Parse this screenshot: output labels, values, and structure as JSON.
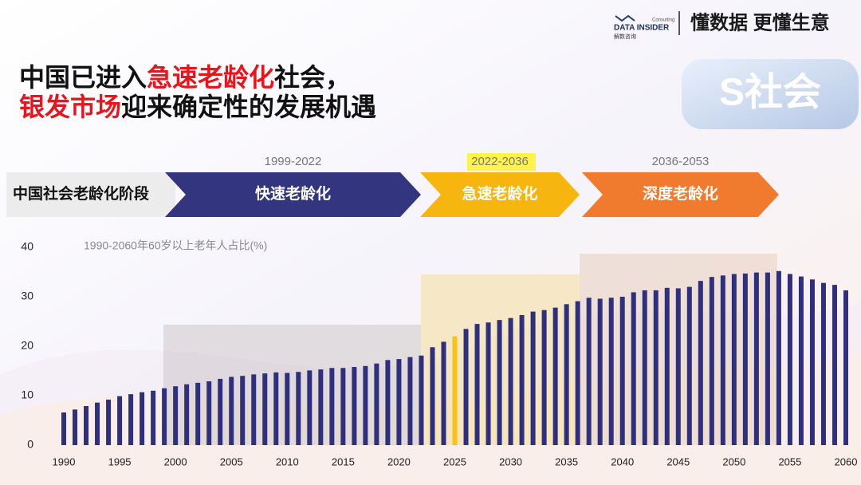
{
  "header": {
    "brand": "DATA INSIDER",
    "brand_sub": "Consulting",
    "brand_cn": "解数咨询",
    "slogan": "懂数据 更懂生意"
  },
  "title": {
    "line1": [
      {
        "text": "中国已进入",
        "red": false
      },
      {
        "text": "急速老龄化",
        "red": true
      },
      {
        "text": "社会，",
        "red": false
      }
    ],
    "line2": [
      {
        "text": "银发市场",
        "red": true
      },
      {
        "text": "迎来确定性的发展机遇",
        "red": false
      }
    ]
  },
  "badge": "S社会",
  "stage_label": "中国社会老龄化阶段",
  "stages": [
    {
      "period": "1999-2022",
      "label": "快速老龄化",
      "color": "#34357f"
    },
    {
      "period": "2022-2036",
      "label": "急速老龄化",
      "color": "#f7b50f"
    },
    {
      "period": "2036-2053",
      "label": "深度老龄化",
      "color": "#f07a2e"
    }
  ],
  "chart_data": {
    "type": "bar",
    "subtitle": "1990-2060年60岁以上老年人占比(%)",
    "x": [
      1990,
      1991,
      1992,
      1993,
      1994,
      1995,
      1996,
      1997,
      1998,
      1999,
      2000,
      2001,
      2002,
      2003,
      2004,
      2005,
      2006,
      2007,
      2008,
      2009,
      2010,
      2011,
      2012,
      2013,
      2014,
      2015,
      2016,
      2017,
      2018,
      2019,
      2020,
      2021,
      2022,
      2023,
      2024,
      2025,
      2026,
      2027,
      2028,
      2029,
      2030,
      2031,
      2032,
      2033,
      2034,
      2035,
      2036,
      2037,
      2038,
      2039,
      2040,
      2041,
      2042,
      2043,
      2044,
      2045,
      2046,
      2047,
      2048,
      2049,
      2050,
      2051,
      2052,
      2053,
      2054,
      2055,
      2056,
      2057,
      2058,
      2059,
      2060
    ],
    "values": [
      6.6,
      7.2,
      7.9,
      8.6,
      9.2,
      9.9,
      10.3,
      10.7,
      11.0,
      11.5,
      11.9,
      12.3,
      12.6,
      12.9,
      13.4,
      13.8,
      14.0,
      14.3,
      14.5,
      14.7,
      14.6,
      14.8,
      15.1,
      15.3,
      15.6,
      15.6,
      15.8,
      16.0,
      16.5,
      17.2,
      17.4,
      17.8,
      18.1,
      19.8,
      20.9,
      22.0,
      23.5,
      24.5,
      24.8,
      25.3,
      25.7,
      26.3,
      27.0,
      27.3,
      27.8,
      28.5,
      29.1,
      29.8,
      29.6,
      29.8,
      30.0,
      30.9,
      31.3,
      31.3,
      31.8,
      31.7,
      32.0,
      33.2,
      34.0,
      34.3,
      34.6,
      34.7,
      34.9,
      34.9,
      35.2,
      34.6,
      34.1,
      33.5,
      32.8,
      32.4,
      31.3
    ],
    "color": "#2e307d",
    "highlight_x": 2025,
    "highlight_color": "#f7c21a",
    "xlim": [
      1990,
      2060
    ],
    "xticks": [
      1990,
      1995,
      2000,
      2005,
      2010,
      2015,
      2020,
      2025,
      2030,
      2035,
      2040,
      2045,
      2050,
      2055,
      2060
    ],
    "ylim": [
      0,
      40
    ],
    "yticks": [
      0,
      10,
      20,
      30,
      40
    ]
  }
}
